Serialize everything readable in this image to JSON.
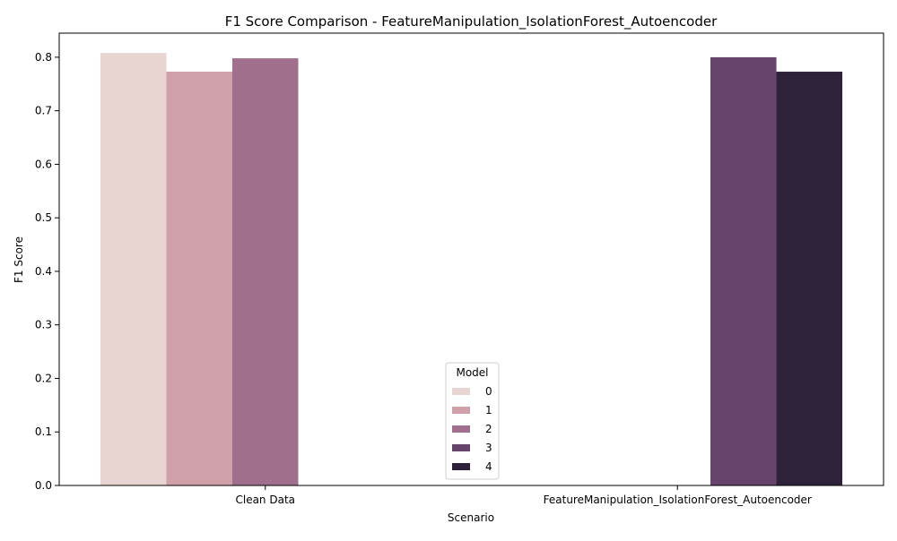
{
  "chart_data": {
    "type": "bar",
    "title": "F1 Score Comparison - FeatureManipulation_IsolationForest_Autoencoder",
    "xlabel": "Scenario",
    "ylabel": "F1 Score",
    "categories": [
      "Clean Data",
      "FeatureManipulation_IsolationForest_Autoencoder"
    ],
    "ylim": [
      0,
      0.845
    ],
    "yticks": [
      "0.0",
      "0.1",
      "0.2",
      "0.3",
      "0.4",
      "0.5",
      "0.6",
      "0.7",
      "0.8"
    ],
    "legend": {
      "title": "Model",
      "placement": "lower center"
    },
    "grid": false,
    "series": [
      {
        "name": "0",
        "color": "#e8d5d2",
        "values": [
          0.808,
          null
        ]
      },
      {
        "name": "1",
        "color": "#cfa0aa",
        "values": [
          0.773,
          null
        ]
      },
      {
        "name": "2",
        "color": "#a06f8c",
        "values": [
          0.798,
          null
        ]
      },
      {
        "name": "3",
        "color": "#66446b",
        "values": [
          null,
          0.8
        ]
      },
      {
        "name": "4",
        "color": "#2d2239",
        "values": [
          null,
          0.773
        ]
      }
    ]
  }
}
